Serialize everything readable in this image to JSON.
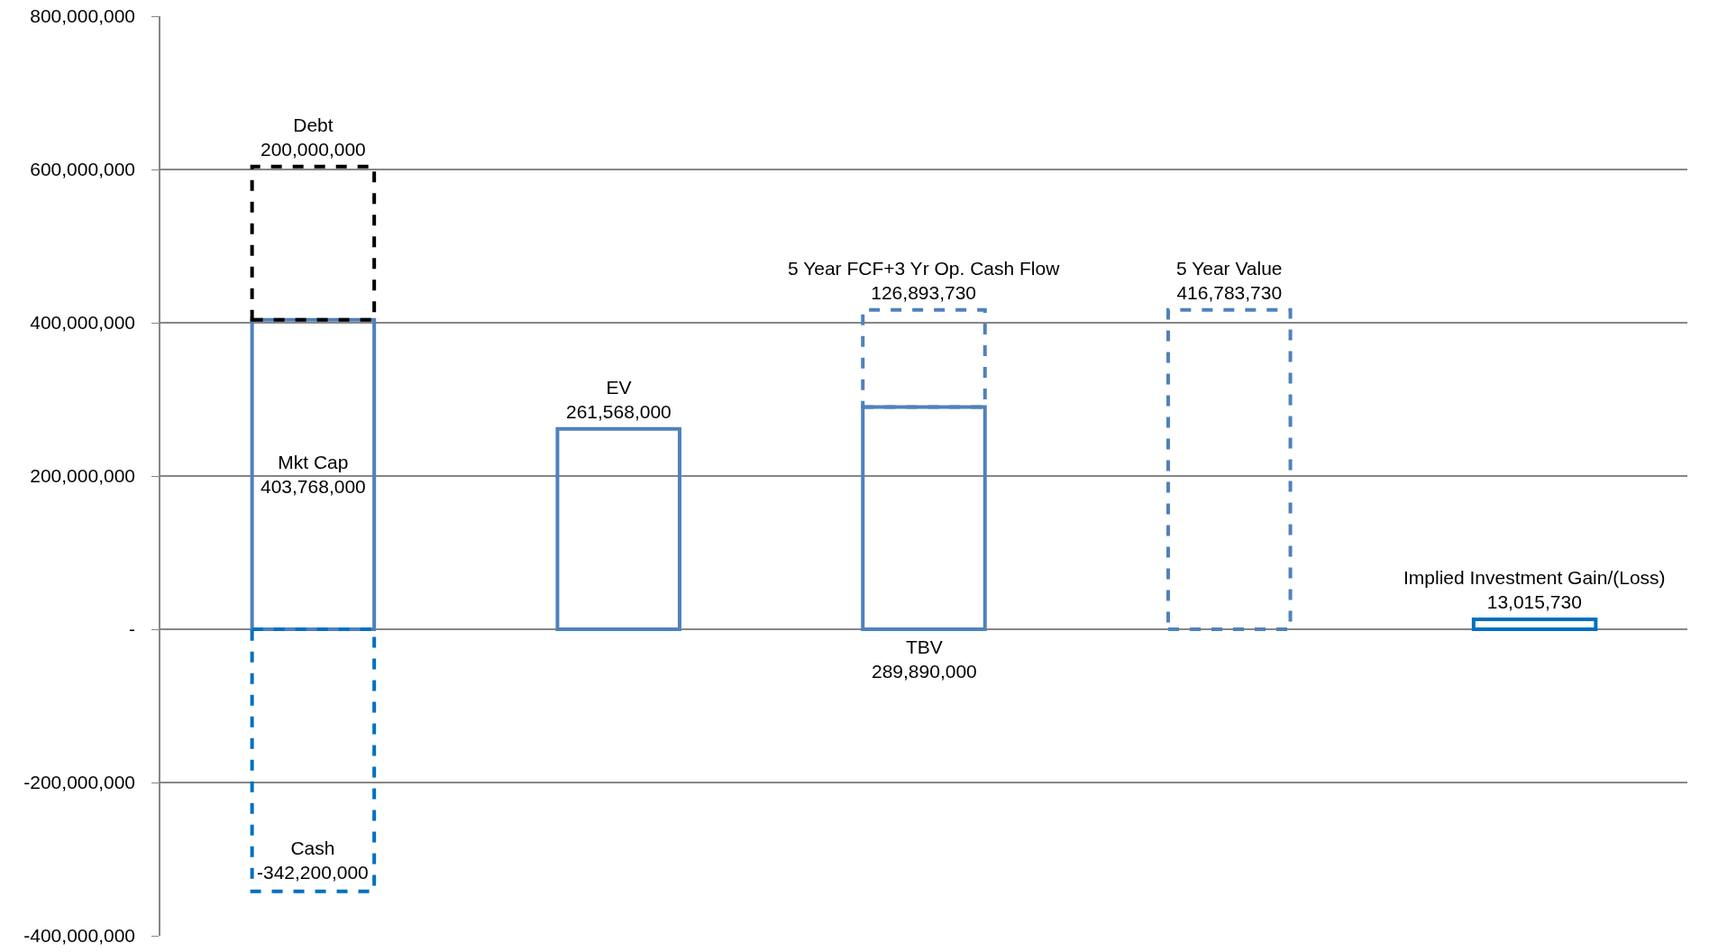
{
  "chart_data": {
    "type": "bar",
    "categories": [
      null,
      null,
      null,
      null,
      null
    ],
    "tick_labels": "y",
    "grid": "y",
    "ylim": [
      -400000000,
      800000000
    ],
    "yticks": [
      {
        "value": -400000000,
        "label": "-400,000,000"
      },
      {
        "value": -200000000,
        "label": "-200,000,000"
      },
      {
        "value": 0,
        "label": "-"
      },
      {
        "value": 200000000,
        "label": "200,000,000"
      },
      {
        "value": 400000000,
        "label": "400,000,000"
      },
      {
        "value": 600000000,
        "label": "600,000,000"
      },
      {
        "value": 800000000,
        "label": "800,000,000"
      }
    ],
    "series": [
      {
        "name": "Mkt Cap",
        "color": "#4f81bd",
        "line_style": "solid",
        "base": [
          0,
          null,
          null,
          null,
          null
        ],
        "values": [
          403768000,
          null,
          null,
          null,
          null
        ],
        "value_labels": [
          "403,768,000",
          null,
          null,
          null,
          null
        ]
      },
      {
        "name": "Debt",
        "color": "#000000",
        "line_style": "dashed",
        "base": [
          403768000,
          null,
          null,
          null,
          null
        ],
        "values": [
          200000000,
          null,
          null,
          null,
          null
        ],
        "value_labels": [
          "200,000,000",
          null,
          null,
          null,
          null
        ]
      },
      {
        "name": "Cash",
        "color": "#0070c0",
        "line_style": "dashed",
        "base": [
          0,
          null,
          null,
          null,
          null
        ],
        "values": [
          -342200000,
          null,
          null,
          null,
          null
        ],
        "value_labels": [
          "-342,200,000",
          null,
          null,
          null,
          null
        ]
      },
      {
        "name": "EV",
        "color": "#4f81bd",
        "line_style": "solid",
        "base": [
          null,
          0,
          null,
          null,
          null
        ],
        "values": [
          null,
          261568000,
          null,
          null,
          null
        ],
        "value_labels": [
          null,
          "261,568,000",
          null,
          null,
          null
        ]
      },
      {
        "name": "TBV",
        "color": "#4f81bd",
        "line_style": "solid",
        "base": [
          null,
          null,
          0,
          null,
          null
        ],
        "values": [
          null,
          null,
          289890000,
          null,
          null
        ],
        "value_labels": [
          null,
          null,
          "289,890,000",
          null,
          null
        ]
      },
      {
        "name": "5 Year FCF+3 Yr Op. Cash Flow",
        "color": "#4f81bd",
        "line_style": "dashed",
        "base": [
          null,
          null,
          289890000,
          null,
          null
        ],
        "values": [
          null,
          null,
          126893730,
          null,
          null
        ],
        "value_labels": [
          null,
          null,
          "126,893,730",
          null,
          null
        ]
      },
      {
        "name": "5 Year Value",
        "color": "#4f81bd",
        "line_style": "dashed",
        "base": [
          null,
          null,
          null,
          0,
          null
        ],
        "values": [
          null,
          null,
          null,
          416783730,
          null
        ],
        "value_labels": [
          null,
          null,
          null,
          "416,783,730",
          null
        ]
      },
      {
        "name": "Implied Investment Gain/(Loss)",
        "color": "#0070c0",
        "line_style": "solid",
        "base": [
          null,
          null,
          null,
          null,
          0
        ],
        "values": [
          null,
          null,
          null,
          null,
          13015730
        ],
        "value_labels": [
          null,
          null,
          null,
          null,
          "13,015,730"
        ]
      }
    ]
  }
}
